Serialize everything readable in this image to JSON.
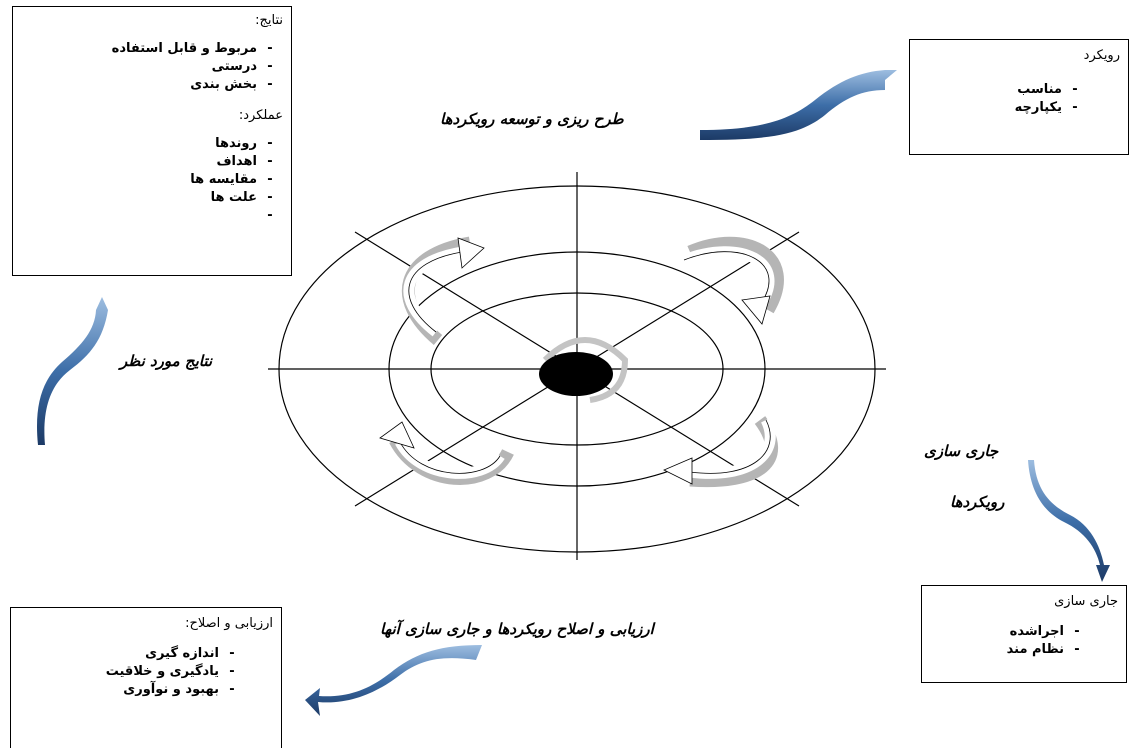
{
  "results_box": {
    "heading": "نتایج:",
    "items": [
      "مربوط و قابل استفاده",
      "درستی",
      "بخش بندی"
    ],
    "heading2": "عملکرد:",
    "items2": [
      "روندها",
      "اهداف",
      "مقایسه ها",
      "علت ها",
      ""
    ]
  },
  "approach_box": {
    "heading": "رویکرد",
    "items": [
      "مناسب",
      "یکپارچه"
    ]
  },
  "deployment_box": {
    "heading": "جاری سازی",
    "items": [
      "اجراشده",
      "نظام مند"
    ]
  },
  "assessment_box": {
    "heading": "ارزیابی و اصلاح:",
    "items": [
      "اندازه گیری",
      "یادگیری و خلاقیت",
      "بهبود و نوآوری"
    ]
  },
  "labels": {
    "planning": "طرح ریزی و توسعه رویکردها",
    "desired_results": "نتایج مورد نظر",
    "deployment_line1": "جاری سازی",
    "deployment_line2": "رویکردها",
    "assessment": "ارزیابی و اصلاح رویکردها و جاری سازی آنها"
  },
  "colors": {
    "ribbon_light": "#8aaed6",
    "ribbon_dark": "#1f3f6b",
    "arrow_fill": "#ffffff",
    "arrow_shadow": "#b8b8b8",
    "hub": "#000000"
  }
}
